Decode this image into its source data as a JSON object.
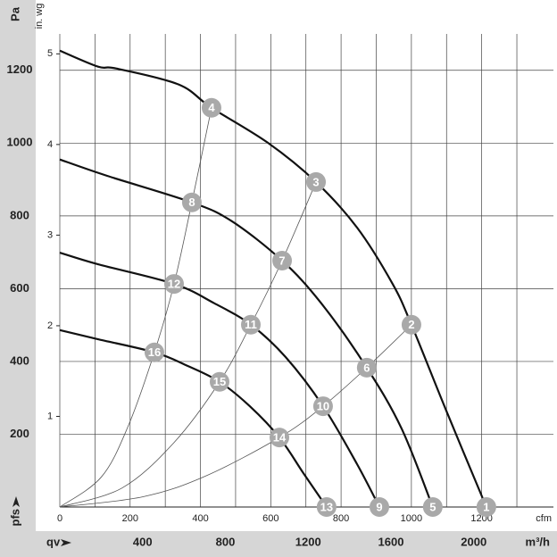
{
  "chart_data": {
    "type": "fan-curve",
    "y_label": "Pa",
    "y2_label": "in. wg",
    "x_label": "qv",
    "x_unit": "m³/h",
    "x2_unit": "cfm",
    "corner_label": "pfs",
    "xlim": [
      0,
      2385
    ],
    "xticks": [
      400,
      800,
      1200,
      1600,
      2000
    ],
    "x2lim": [
      0,
      1404
    ],
    "x2ticks": [
      0,
      200,
      400,
      600,
      800,
      1000,
      1200
    ],
    "x2minor": [
      100,
      300,
      500,
      700,
      900,
      1100,
      1300
    ],
    "ylim": [
      0,
      1300
    ],
    "yticks": [
      200,
      400,
      600,
      800,
      1000,
      1200
    ],
    "y2lim": [
      0,
      5.22
    ],
    "y2ticks": [
      1,
      2,
      3,
      4,
      5
    ],
    "grid": true,
    "series": [
      {
        "color": "#111111",
        "x": [
          0,
          185,
          272,
          574,
          733,
          1005,
          1238,
          1436,
          1608,
          1699,
          1867,
          2061
        ],
        "values": [
          1254,
          1210,
          1205,
          1161,
          1097,
          1001,
          893,
          768,
          613,
          501,
          265,
          0
        ]
      },
      {
        "color": "#111111",
        "x": [
          0,
          229,
          638,
          832,
          1074,
          1263,
          1483,
          1651,
          1802
        ],
        "values": [
          955,
          910,
          837,
          785,
          677,
          560,
          383,
          216,
          0
        ]
      },
      {
        "color": "#111111",
        "x": [
          0,
          185,
          552,
          746,
          923,
          1091,
          1272,
          1436,
          1544
        ],
        "values": [
          699,
          667,
          613,
          560,
          501,
          412,
          277,
          118,
          0
        ]
      },
      {
        "color": "#111111",
        "x": [
          0,
          185,
          457,
          617,
          772,
          918,
          1061,
          1177,
          1289
        ],
        "values": [
          486,
          461,
          425,
          388,
          344,
          277,
          191,
          93,
          0
        ]
      }
    ],
    "system_curves": [
      {
        "color": "#555555",
        "x": [
          0,
          200,
          330,
          457,
          552,
          638,
          733
        ],
        "values": [
          0,
          82,
          222,
          425,
          613,
          837,
          1097
        ]
      },
      {
        "color": "#555555",
        "x": [
          0,
          300,
          550,
          772,
          923,
          1074,
          1238
        ],
        "values": [
          0,
          52,
          176,
          344,
          501,
          677,
          893
        ]
      },
      {
        "color": "#555555",
        "x": [
          0,
          400,
          700,
          1061,
          1272,
          1483,
          1699
        ],
        "values": [
          0,
          28,
          84,
          191,
          277,
          383,
          501
        ]
      }
    ],
    "point_color": "#a9a9a9",
    "operating_points": [
      {
        "label": "1",
        "x": 2061,
        "y": 0
      },
      {
        "label": "2",
        "x": 1699,
        "y": 501
      },
      {
        "label": "3",
        "x": 1238,
        "y": 893
      },
      {
        "label": "4",
        "x": 733,
        "y": 1097
      },
      {
        "label": "5",
        "x": 1802,
        "y": 0
      },
      {
        "label": "6",
        "x": 1483,
        "y": 383
      },
      {
        "label": "7",
        "x": 1074,
        "y": 677
      },
      {
        "label": "8",
        "x": 638,
        "y": 837
      },
      {
        "label": "9",
        "x": 1544,
        "y": 0
      },
      {
        "label": "10",
        "x": 1272,
        "y": 277
      },
      {
        "label": "11",
        "x": 923,
        "y": 501
      },
      {
        "label": "12",
        "x": 552,
        "y": 613
      },
      {
        "label": "13",
        "x": 1289,
        "y": 0
      },
      {
        "label": "14",
        "x": 1061,
        "y": 191
      },
      {
        "label": "15",
        "x": 772,
        "y": 344
      },
      {
        "label": "16",
        "x": 457,
        "y": 425
      }
    ]
  }
}
